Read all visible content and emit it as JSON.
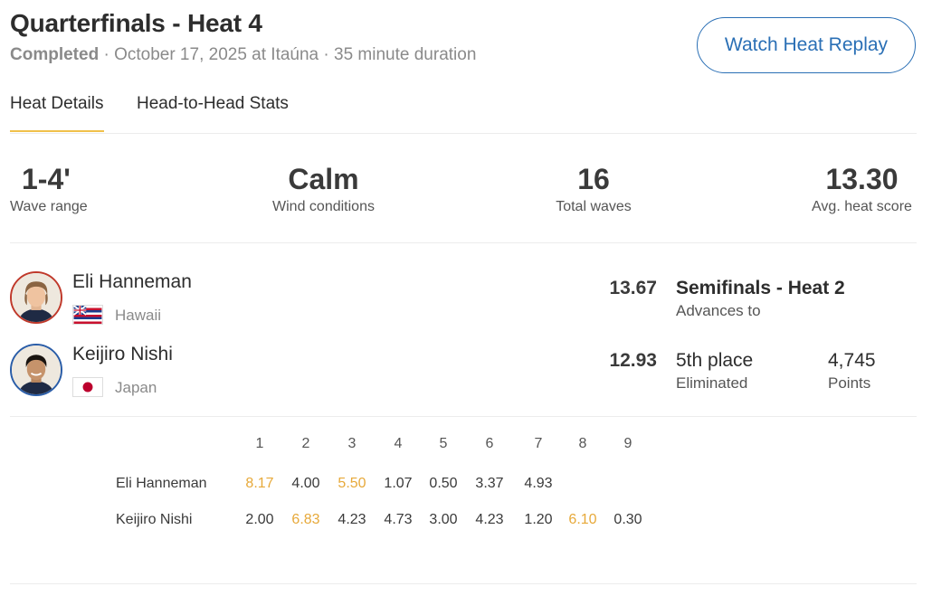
{
  "header": {
    "title": "Quarterfinals - Heat 4",
    "status": "Completed",
    "details": " · October 17, 2025 at Itaúna · 35 minute duration",
    "replay_label": "Watch Heat Replay"
  },
  "tabs": [
    {
      "label": "Heat Details",
      "active": true
    },
    {
      "label": "Head-to-Head Stats",
      "active": false
    }
  ],
  "stats": [
    {
      "value": "1-4'",
      "label": "Wave range"
    },
    {
      "value": "Calm",
      "label": "Wind conditions"
    },
    {
      "value": "16",
      "label": "Total waves"
    },
    {
      "value": "13.30",
      "label": "Avg. heat score"
    }
  ],
  "surfers": [
    {
      "name": "Eli Hanneman",
      "country": "Hawaii",
      "flag_icon": "hawaii-flag-icon",
      "ring_color": "#c0392b",
      "score": "13.67",
      "result_title": "Semifinals - Heat 2",
      "result_sub": "Advances to",
      "points_value": "",
      "points_label": ""
    },
    {
      "name": "Keijiro Nishi",
      "country": "Japan",
      "flag_icon": "japan-flag-icon",
      "ring_color": "#2a5da8",
      "score": "12.93",
      "result_title": "5th place",
      "result_sub": "Eliminated",
      "points_value": "4,745",
      "points_label": "Points"
    }
  ],
  "waves": {
    "numbers": [
      "1",
      "2",
      "3",
      "4",
      "5",
      "6",
      "7",
      "8",
      "9"
    ],
    "highlight_color": "#e7a93a",
    "rows": [
      {
        "name": "Eli Hanneman",
        "scores": [
          "8.17",
          "4.00",
          "5.50",
          "1.07",
          "0.50",
          "3.37",
          "4.93",
          "",
          ""
        ],
        "top": [
          0,
          2
        ]
      },
      {
        "name": "Keijiro Nishi",
        "scores": [
          "2.00",
          "6.83",
          "4.23",
          "4.73",
          "3.00",
          "4.23",
          "1.20",
          "6.10",
          "0.30"
        ],
        "top": [
          1,
          7
        ]
      }
    ]
  }
}
